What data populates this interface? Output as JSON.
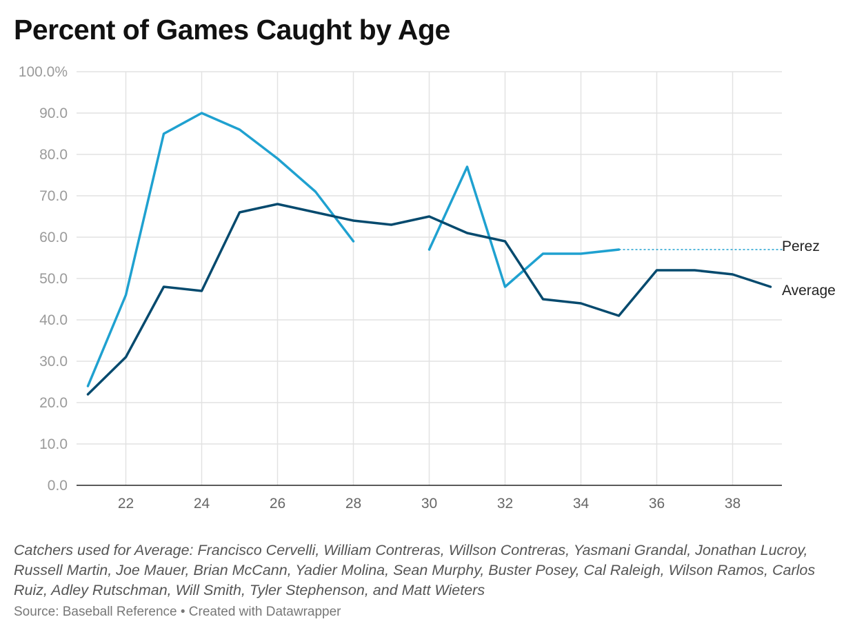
{
  "chart_data": {
    "type": "line",
    "title": "Percent of Games Caught by Age",
    "x_ticks": [
      22,
      24,
      26,
      28,
      30,
      32,
      34,
      36,
      38
    ],
    "y_ticks": [
      "100.0%",
      "90.0",
      "80.0",
      "70.0",
      "60.0",
      "50.0",
      "40.0",
      "30.0",
      "20.0",
      "10.0",
      "0.0"
    ],
    "xlim": [
      20.7,
      39.3
    ],
    "ylim": [
      0,
      100
    ],
    "grid": true,
    "series": [
      {
        "name": "Perez",
        "color": "#1fa1d0",
        "x": [
          21,
          22,
          23,
          24,
          25,
          26,
          27,
          28,
          29,
          30,
          31,
          32,
          33,
          34,
          35
        ],
        "values": [
          24,
          46,
          85,
          90,
          86,
          79,
          71,
          59,
          null,
          57,
          77,
          48,
          56,
          56,
          57
        ],
        "extend_dashed_to": 39.4
      },
      {
        "name": "Average",
        "color": "#054a6e",
        "x": [
          21,
          22,
          23,
          24,
          25,
          26,
          27,
          28,
          29,
          30,
          31,
          32,
          33,
          34,
          35,
          36,
          37,
          38,
          39
        ],
        "values": [
          22,
          31,
          48,
          47,
          66,
          68,
          66,
          64,
          63,
          65,
          61,
          59,
          45,
          44,
          41,
          52,
          52,
          51,
          48
        ]
      }
    ],
    "notes": "Catchers used for Average: Francisco Cervelli, William Contreras, Willson Contreras, Yasmani Grandal, Jonathan Lucroy, Russell Martin, Joe Mauer, Brian McCann, Yadier Molina, Sean Murphy, Buster Posey, Cal Raleigh, Wilson Ramos, Carlos Ruiz, Adley Rutschman, Will Smith, Tyler Stephenson, and Matt Wieters",
    "source": "Source: Baseball Reference • Created with Datawrapper"
  }
}
